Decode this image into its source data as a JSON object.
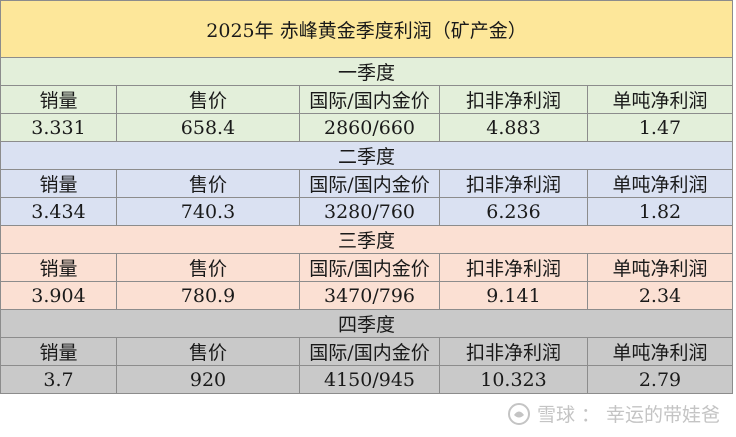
{
  "title": "2025年 赤峰黄金季度利润（矿产金）",
  "headers": [
    "销量",
    "售价",
    "国际/国内金价",
    "扣非净利润",
    "单吨净利润"
  ],
  "quarters": [
    {
      "name": "一季度",
      "values": [
        "3.331",
        "658.4",
        "2860/660",
        "4.883",
        "1.47"
      ]
    },
    {
      "name": "二季度",
      "values": [
        "3.434",
        "740.3",
        "3280/760",
        "6.236",
        "1.82"
      ]
    },
    {
      "name": "三季度",
      "values": [
        "3.904",
        "780.9",
        "3470/796",
        "9.141",
        "2.34"
      ]
    },
    {
      "name": "四季度",
      "values": [
        "3.7",
        "920",
        "4150/945",
        "10.323",
        "2.79"
      ]
    }
  ],
  "watermark": {
    "brand": "雪球",
    "author": "幸运的带娃爸",
    "separator": "："
  },
  "colors": {
    "title_bg": "#fde79a",
    "q1_bg": "#e3efda",
    "q2_bg": "#dae1f2",
    "q3_bg": "#fbe0d3",
    "q4_bg": "#c9c9c9"
  }
}
